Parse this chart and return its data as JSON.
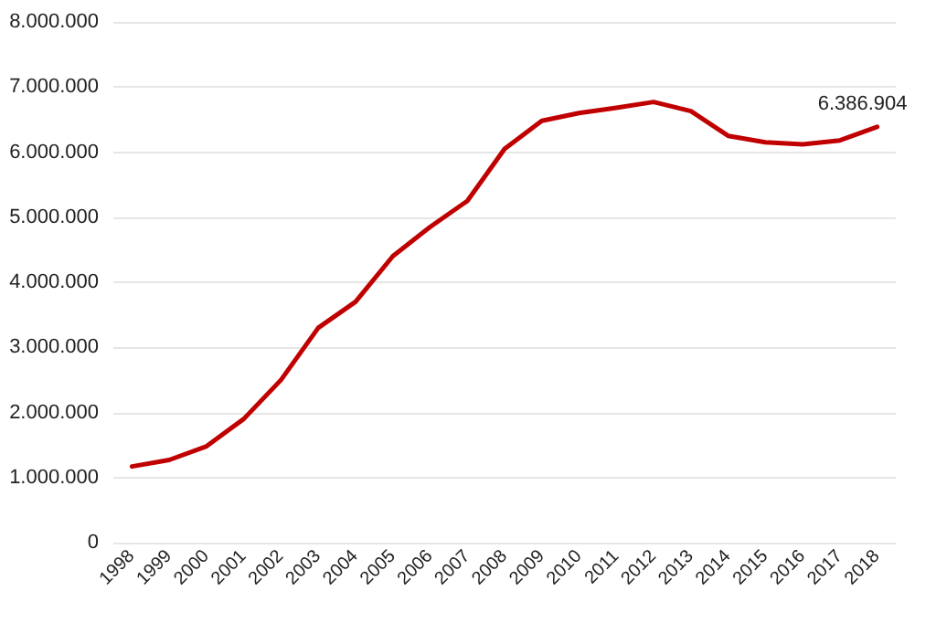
{
  "chart_data": {
    "type": "line",
    "categories": [
      "1998",
      "1999",
      "2000",
      "2001",
      "2002",
      "2003",
      "2004",
      "2005",
      "2006",
      "2007",
      "2008",
      "2009",
      "2010",
      "2011",
      "2012",
      "2013",
      "2014",
      "2015",
      "2016",
      "2017",
      "2018"
    ],
    "series": [
      {
        "color": "#c00000",
        "values": [
          1170000,
          1270000,
          1480000,
          1900000,
          2500000,
          3300000,
          3700000,
          4400000,
          4850000,
          5250000,
          6050000,
          6480000,
          6600000,
          6680000,
          6770000,
          6630000,
          6250000,
          6150000,
          6120000,
          6180000,
          6386904
        ],
        "value_labels": [
          null,
          null,
          null,
          null,
          null,
          null,
          null,
          null,
          null,
          null,
          null,
          null,
          null,
          null,
          null,
          null,
          null,
          null,
          null,
          null,
          "6.386.904"
        ]
      }
    ],
    "ylim": [
      0,
      8000000
    ],
    "yticks": [
      {
        "value": 0,
        "label": "0"
      },
      {
        "value": 1000000,
        "label": "1.000.000"
      },
      {
        "value": 2000000,
        "label": "2.000.000"
      },
      {
        "value": 3000000,
        "label": "3.000.000"
      },
      {
        "value": 4000000,
        "label": "4.000.000"
      },
      {
        "value": 5000000,
        "label": "5.000.000"
      },
      {
        "value": 6000000,
        "label": "6.000.000"
      },
      {
        "value": 7000000,
        "label": "7.000.000"
      },
      {
        "value": 8000000,
        "label": "8.000.000"
      }
    ],
    "grid": "y",
    "marker": "none",
    "line_style": "solid"
  }
}
